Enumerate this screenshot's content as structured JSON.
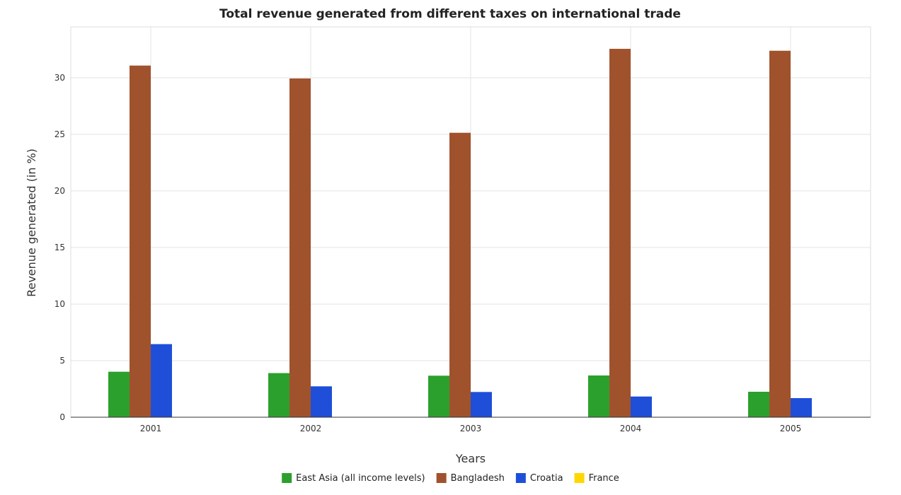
{
  "chart_data": {
    "type": "bar",
    "title": "Total revenue generated from different taxes on international trade",
    "xlabel": "Years",
    "ylabel": "Revenue generated (in %)",
    "categories": [
      "2001",
      "2002",
      "2003",
      "2004",
      "2005"
    ],
    "series": [
      {
        "name": "East Asia (all income levels)",
        "color": "#2ca02c",
        "values": [
          4.02,
          3.9,
          3.67,
          3.69,
          2.25
        ]
      },
      {
        "name": "Bangladesh",
        "color": "#a0522d",
        "values": [
          31.08,
          29.94,
          25.14,
          32.56,
          32.39
        ]
      },
      {
        "name": "Croatia",
        "color": "#1f4fd8",
        "values": [
          6.46,
          2.73,
          2.23,
          1.83,
          1.69
        ]
      },
      {
        "name": "France",
        "color": "#ffd700",
        "values": [
          0.0,
          0.0,
          0.0,
          0.0,
          0.0
        ]
      }
    ],
    "y_ticks": [
      "0",
      "5",
      "10",
      "15",
      "20",
      "25",
      "30"
    ],
    "ylim": [
      0,
      34.5
    ],
    "grid": true,
    "legend_position": "bottom-center"
  }
}
